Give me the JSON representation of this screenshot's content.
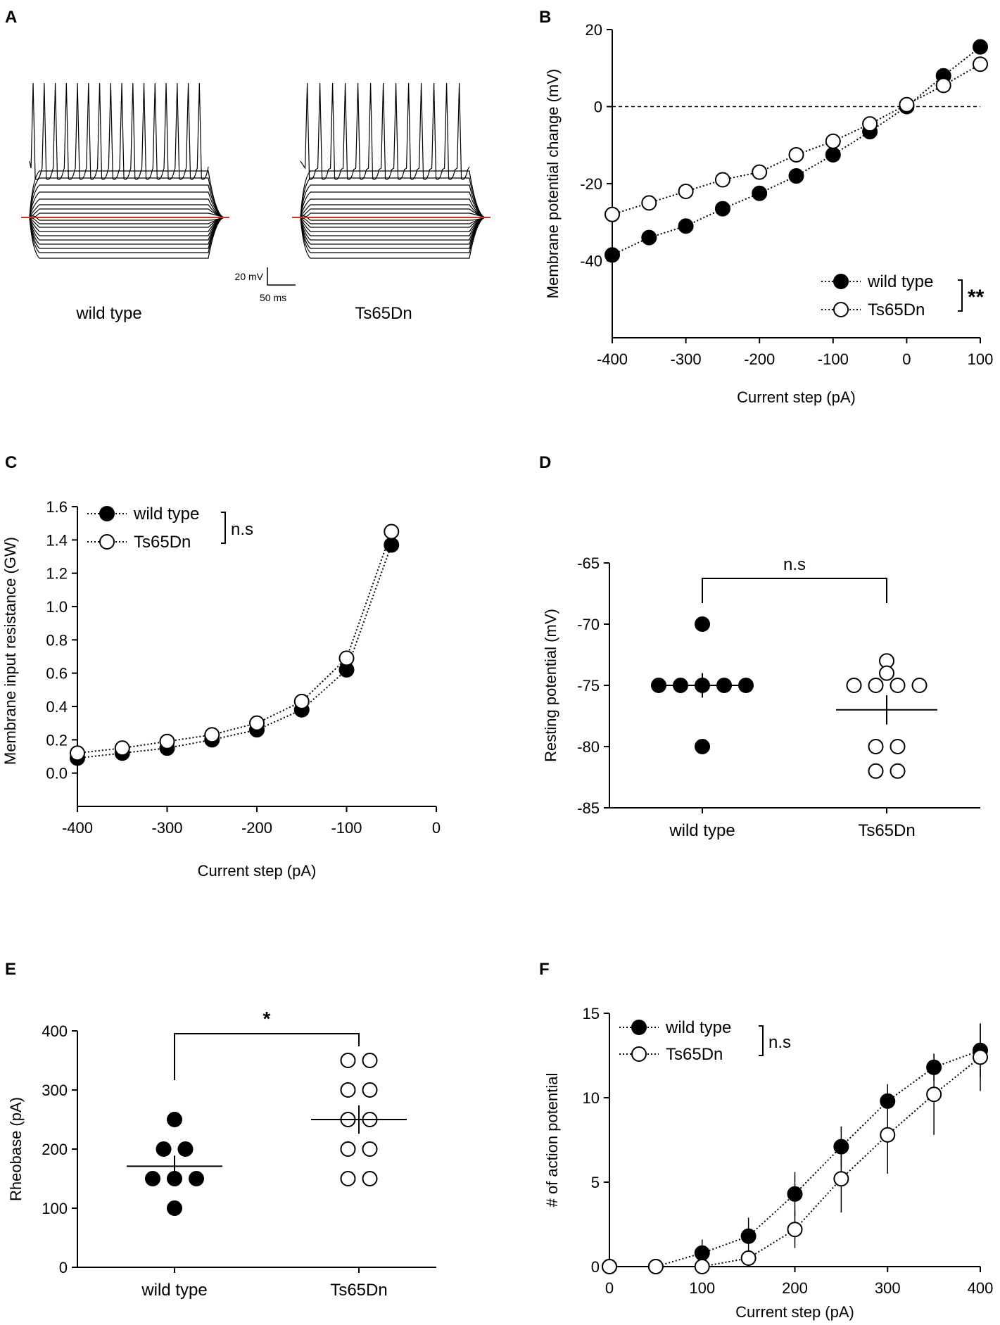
{
  "panels": {
    "A": {
      "letter": "A",
      "scale_bar": {
        "voltage": "20 mV",
        "time": "50 ms"
      },
      "trace_labels": [
        "wild type",
        "Ts65Dn"
      ]
    },
    "B": {
      "letter": "B",
      "significance": "**"
    },
    "C": {
      "letter": "C",
      "significance": "n.s"
    },
    "D": {
      "letter": "D",
      "significance": "n.s"
    },
    "E": {
      "letter": "E",
      "significance": "*"
    },
    "F": {
      "letter": "F",
      "significance": "n.s"
    }
  },
  "colors": {
    "red_baseline": "#d0311e",
    "ink": "#000000"
  },
  "chart_data": [
    {
      "id": "B",
      "type": "line",
      "title": "",
      "xlabel": "Current step (pA)",
      "ylabel": "Membrane potential change (mV)",
      "xlim": [
        -400,
        100
      ],
      "ylim": [
        -60,
        20
      ],
      "xticks": [
        -400,
        -300,
        -200,
        -100,
        0,
        100
      ],
      "yticks": [
        -40,
        -20,
        0,
        20
      ],
      "reference_line": 0,
      "legend": "bottom-right",
      "x": [
        -400,
        -350,
        -300,
        -250,
        -200,
        -150,
        -100,
        -50,
        0,
        50,
        100
      ],
      "series": [
        {
          "name": "wild type",
          "marker": "filled",
          "values": [
            -38.5,
            -34,
            -31,
            -26.5,
            -22.5,
            -18,
            -12.5,
            -6.5,
            0,
            8,
            15.5
          ]
        },
        {
          "name": "Ts65Dn",
          "marker": "open",
          "values": [
            -28,
            -25,
            -22,
            -19,
            -17,
            -12.5,
            -9,
            -4.5,
            0.5,
            5.5,
            11
          ]
        }
      ]
    },
    {
      "id": "C",
      "type": "line",
      "title": "",
      "xlabel": "Current step (pA)",
      "ylabel": "Membrane input resistance (GW)",
      "xlim": [
        -400,
        0
      ],
      "ylim": [
        -0.2,
        1.6
      ],
      "xticks": [
        -400,
        -300,
        -200,
        -100,
        0
      ],
      "yticks": [
        0.0,
        0.2,
        0.4,
        0.6,
        0.8,
        1.0,
        1.2,
        1.4,
        1.6
      ],
      "ytick_labels": [
        "0.0",
        "0.2",
        "0.4",
        "0.6",
        "0.8",
        "1.0",
        "1.2",
        "1.4",
        "1.6"
      ],
      "legend": "top-left",
      "x": [
        -400,
        -350,
        -300,
        -250,
        -200,
        -150,
        -100,
        -50
      ],
      "series": [
        {
          "name": "wild type",
          "marker": "filled",
          "values": [
            0.09,
            0.12,
            0.15,
            0.2,
            0.26,
            0.38,
            0.62,
            1.37
          ]
        },
        {
          "name": "Ts65Dn",
          "marker": "open",
          "values": [
            0.12,
            0.15,
            0.19,
            0.23,
            0.3,
            0.43,
            0.69,
            1.45
          ]
        }
      ]
    },
    {
      "id": "D",
      "type": "scatter",
      "title": "",
      "xlabel": "",
      "ylabel": "Resting potential (mV)",
      "categories": [
        "wild type",
        "Ts65Dn"
      ],
      "ylim": [
        -85,
        -65
      ],
      "yticks": [
        -85,
        -80,
        -75,
        -70,
        -65
      ],
      "groups": [
        {
          "name": "wild type",
          "marker": "filled",
          "values": [
            -70,
            -75,
            -75,
            -75,
            -75,
            -75,
            -80
          ],
          "mean": -75,
          "sem": 1.0
        },
        {
          "name": "Ts65Dn",
          "marker": "open",
          "values": [
            -73,
            -74,
            -75,
            -75,
            -75,
            -75,
            -80,
            -80,
            -82,
            -82
          ],
          "mean": -77,
          "sem": 1.2
        }
      ]
    },
    {
      "id": "E",
      "type": "scatter",
      "title": "",
      "xlabel": "",
      "ylabel": "Rheobase (pA)",
      "categories": [
        "wild type",
        "Ts65Dn"
      ],
      "ylim": [
        0,
        400
      ],
      "yticks": [
        0,
        100,
        200,
        300,
        400
      ],
      "groups": [
        {
          "name": "wild type",
          "marker": "filled",
          "values": [
            250,
            200,
            200,
            150,
            150,
            150,
            100
          ],
          "mean": 171,
          "sem": 18
        },
        {
          "name": "Ts65Dn",
          "marker": "open",
          "values": [
            350,
            350,
            300,
            300,
            250,
            250,
            200,
            200,
            150,
            150
          ],
          "mean": 250,
          "sem": 24
        }
      ]
    },
    {
      "id": "F",
      "type": "line",
      "title": "",
      "xlabel": "Current step (pA)",
      "ylabel": "# of action potential",
      "xlim": [
        0,
        400
      ],
      "ylim": [
        0,
        15
      ],
      "xticks": [
        0,
        100,
        200,
        300,
        400
      ],
      "yticks": [
        0,
        5,
        10,
        15
      ],
      "legend": "top-left",
      "x": [
        0,
        50,
        100,
        150,
        200,
        250,
        300,
        350,
        400
      ],
      "series": [
        {
          "name": "wild type",
          "marker": "filled",
          "values": [
            0,
            0,
            0.8,
            1.8,
            4.3,
            7.1,
            9.8,
            11.8,
            12.8
          ],
          "errors": [
            0,
            0,
            0.8,
            1.1,
            1.3,
            1.2,
            1.0,
            0.8,
            1.6
          ]
        },
        {
          "name": "Ts65Dn",
          "marker": "open",
          "values": [
            0,
            0,
            0,
            0.5,
            2.2,
            5.2,
            7.8,
            10.2,
            12.4
          ],
          "errors": [
            0,
            0,
            0,
            0.5,
            1.1,
            2.0,
            2.3,
            2.4,
            2.0
          ]
        }
      ]
    }
  ]
}
